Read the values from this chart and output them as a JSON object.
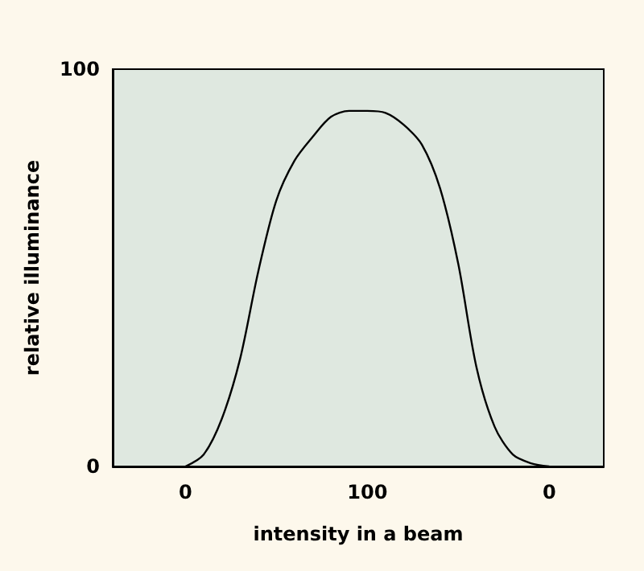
{
  "chart_data": {
    "type": "line",
    "xlabel": "intensity in a beam",
    "ylabel": "relative illuminance",
    "categories": [
      null,
      null,
      null,
      null,
      "0",
      null,
      null,
      null,
      null,
      null,
      null,
      null,
      null,
      null,
      "100",
      null,
      null,
      null,
      null,
      null,
      null,
      null,
      null,
      null,
      "0",
      null,
      null,
      null
    ],
    "series": [
      {
        "color": "#000000",
        "values": [
          null,
          null,
          null,
          null,
          0,
          3,
          12,
          27,
          49,
          67,
          77,
          83,
          88,
          89.5,
          89.5,
          89,
          86,
          81,
          70,
          51,
          25,
          10,
          3,
          0.8,
          0,
          null,
          null,
          null
        ]
      }
    ],
    "ylim": [
      0,
      100
    ],
    "yticks": [
      0,
      100
    ],
    "marker": "none",
    "line_style": "solid"
  }
}
